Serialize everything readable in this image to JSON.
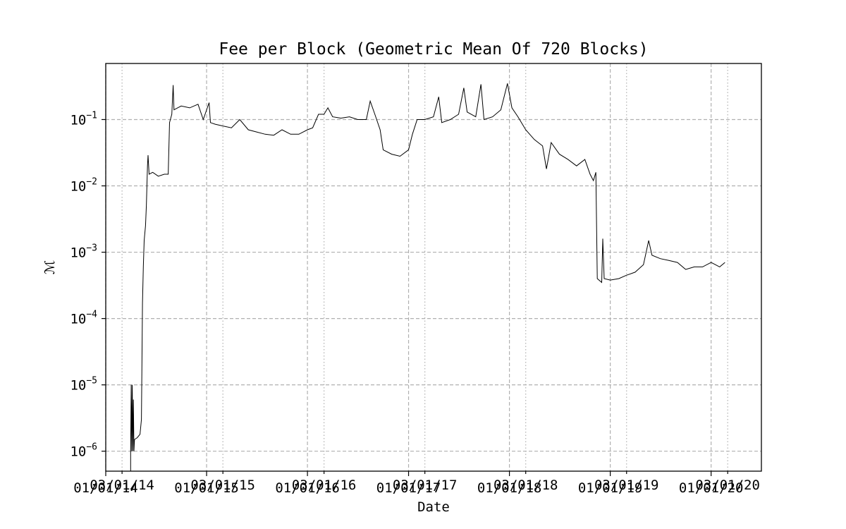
{
  "chart_data": {
    "type": "line",
    "title": "Fee per Block (Geometric Mean Of 720 Blocks)",
    "xlabel": "Date",
    "ylabel": "ℳ",
    "yscale": "log",
    "ylim": [
      5e-07,
      0.7
    ],
    "xlim": [
      "2014-01-01",
      "2020-07-01"
    ],
    "grid": true,
    "x_major_ticks": [
      {
        "date": "2014-01-01",
        "label": "01/01/14"
      },
      {
        "date": "2015-01-01",
        "label": "01/01/15"
      },
      {
        "date": "2016-01-01",
        "label": "01/01/16"
      },
      {
        "date": "2017-01-01",
        "label": "01/01/17"
      },
      {
        "date": "2018-01-01",
        "label": "01/01/18"
      },
      {
        "date": "2019-01-01",
        "label": "01/01/19"
      },
      {
        "date": "2020-01-01",
        "label": "01/01/20"
      }
    ],
    "x_minor_ticks": [
      {
        "date": "2014-03-01",
        "label": "03/01/14"
      },
      {
        "date": "2015-03-01",
        "label": "03/01/15"
      },
      {
        "date": "2016-03-01",
        "label": "03/01/16"
      },
      {
        "date": "2017-03-01",
        "label": "03/01/17"
      },
      {
        "date": "2018-03-01",
        "label": "03/01/18"
      },
      {
        "date": "2019-03-01",
        "label": "03/01/19"
      },
      {
        "date": "2020-03-01",
        "label": "03/01/20"
      }
    ],
    "y_ticks": [
      {
        "value": 1e-06,
        "base": "10",
        "exp": "−6"
      },
      {
        "value": 1e-05,
        "base": "10",
        "exp": "−5"
      },
      {
        "value": 0.0001,
        "base": "10",
        "exp": "−4"
      },
      {
        "value": 0.001,
        "base": "10",
        "exp": "−3"
      },
      {
        "value": 0.01,
        "base": "10",
        "exp": "−2"
      },
      {
        "value": 0.1,
        "base": "10",
        "exp": "−1"
      }
    ],
    "series": [
      {
        "color": "#000000",
        "points": [
          [
            "2014-04-01",
            5e-07
          ],
          [
            "2014-04-01",
            1e-06
          ],
          [
            "2014-04-03",
            1e-05
          ],
          [
            "2014-04-05",
            1e-06
          ],
          [
            "2014-04-07",
            1e-05
          ],
          [
            "2014-04-09",
            1e-06
          ],
          [
            "2014-04-11",
            6e-06
          ],
          [
            "2014-04-13",
            1e-06
          ],
          [
            "2014-04-15",
            1.5e-06
          ],
          [
            "2014-04-25",
            1.6e-06
          ],
          [
            "2014-05-05",
            1.8e-06
          ],
          [
            "2014-05-10",
            3e-06
          ],
          [
            "2014-05-14",
            0.00017
          ],
          [
            "2014-05-17",
            0.0006
          ],
          [
            "2014-05-20",
            0.0015
          ],
          [
            "2014-05-25",
            0.0025
          ],
          [
            "2014-05-28",
            0.005
          ],
          [
            "2014-06-01",
            0.02
          ],
          [
            "2014-06-03",
            0.029
          ],
          [
            "2014-06-07",
            0.015
          ],
          [
            "2014-06-20",
            0.016
          ],
          [
            "2014-07-10",
            0.014
          ],
          [
            "2014-08-01",
            0.015
          ],
          [
            "2014-08-15",
            0.015
          ],
          [
            "2014-08-20",
            0.09
          ],
          [
            "2014-08-28",
            0.12
          ],
          [
            "2014-09-02",
            0.33
          ],
          [
            "2014-09-05",
            0.14
          ],
          [
            "2014-10-01",
            0.16
          ],
          [
            "2014-11-01",
            0.15
          ],
          [
            "2014-12-01",
            0.17
          ],
          [
            "2014-12-20",
            0.1
          ],
          [
            "2015-01-10",
            0.18
          ],
          [
            "2015-01-15",
            0.09
          ],
          [
            "2015-02-01",
            0.085
          ],
          [
            "2015-03-01",
            0.08
          ],
          [
            "2015-04-01",
            0.075
          ],
          [
            "2015-05-01",
            0.1
          ],
          [
            "2015-06-01",
            0.07
          ],
          [
            "2015-07-01",
            0.065
          ],
          [
            "2015-08-01",
            0.06
          ],
          [
            "2015-09-01",
            0.058
          ],
          [
            "2015-10-01",
            0.07
          ],
          [
            "2015-11-01",
            0.06
          ],
          [
            "2015-12-01",
            0.06
          ],
          [
            "2016-01-01",
            0.07
          ],
          [
            "2016-01-20",
            0.075
          ],
          [
            "2016-02-10",
            0.12
          ],
          [
            "2016-03-01",
            0.12
          ],
          [
            "2016-03-15",
            0.15
          ],
          [
            "2016-04-01",
            0.11
          ],
          [
            "2016-05-01",
            0.105
          ],
          [
            "2016-06-01",
            0.11
          ],
          [
            "2016-07-01",
            0.1
          ],
          [
            "2016-08-01",
            0.1
          ],
          [
            "2016-08-15",
            0.19
          ],
          [
            "2016-09-01",
            0.12
          ],
          [
            "2016-09-20",
            0.07
          ],
          [
            "2016-10-01",
            0.035
          ],
          [
            "2016-11-01",
            0.03
          ],
          [
            "2016-12-01",
            0.028
          ],
          [
            "2017-01-01",
            0.035
          ],
          [
            "2017-01-15",
            0.06
          ],
          [
            "2017-02-01",
            0.1
          ],
          [
            "2017-03-01",
            0.1
          ],
          [
            "2017-04-01",
            0.11
          ],
          [
            "2017-04-20",
            0.22
          ],
          [
            "2017-05-01",
            0.09
          ],
          [
            "2017-06-01",
            0.1
          ],
          [
            "2017-07-01",
            0.12
          ],
          [
            "2017-07-20",
            0.3
          ],
          [
            "2017-08-01",
            0.13
          ],
          [
            "2017-09-01",
            0.11
          ],
          [
            "2017-09-20",
            0.34
          ],
          [
            "2017-10-01",
            0.1
          ],
          [
            "2017-11-01",
            0.11
          ],
          [
            "2017-12-01",
            0.14
          ],
          [
            "2017-12-25",
            0.35
          ],
          [
            "2018-01-10",
            0.15
          ],
          [
            "2018-02-01",
            0.11
          ],
          [
            "2018-03-01",
            0.07
          ],
          [
            "2018-04-01",
            0.05
          ],
          [
            "2018-05-01",
            0.04
          ],
          [
            "2018-05-15",
            0.018
          ],
          [
            "2018-06-01",
            0.045
          ],
          [
            "2018-07-01",
            0.03
          ],
          [
            "2018-08-01",
            0.025
          ],
          [
            "2018-09-01",
            0.02
          ],
          [
            "2018-10-01",
            0.025
          ],
          [
            "2018-10-20",
            0.015
          ],
          [
            "2018-11-01",
            0.012
          ],
          [
            "2018-11-10",
            0.016
          ],
          [
            "2018-11-15",
            0.0004
          ],
          [
            "2018-12-01",
            0.00035
          ],
          [
            "2018-12-05",
            0.0016
          ],
          [
            "2018-12-10",
            0.0004
          ],
          [
            "2019-01-01",
            0.00038
          ],
          [
            "2019-02-01",
            0.0004
          ],
          [
            "2019-03-01",
            0.00045
          ],
          [
            "2019-04-01",
            0.0005
          ],
          [
            "2019-05-01",
            0.00065
          ],
          [
            "2019-05-20",
            0.0015
          ],
          [
            "2019-06-01",
            0.0009
          ],
          [
            "2019-07-01",
            0.0008
          ],
          [
            "2019-08-01",
            0.00075
          ],
          [
            "2019-09-01",
            0.0007
          ],
          [
            "2019-10-01",
            0.00055
          ],
          [
            "2019-11-01",
            0.0006
          ],
          [
            "2019-12-01",
            0.0006
          ],
          [
            "2020-01-01",
            0.0007
          ],
          [
            "2020-02-01",
            0.0006
          ],
          [
            "2020-02-20",
            0.0007
          ]
        ]
      }
    ]
  }
}
